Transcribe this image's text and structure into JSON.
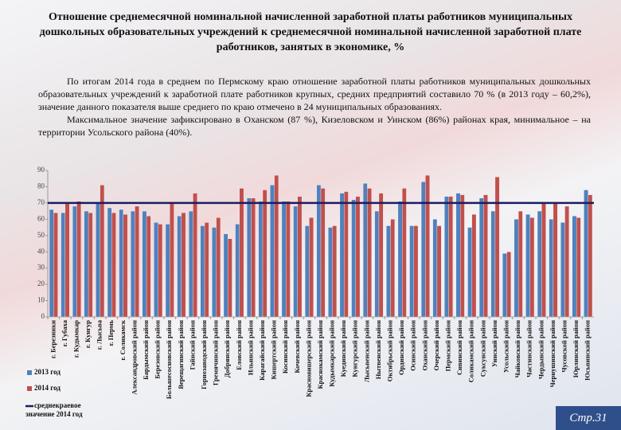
{
  "slide": {
    "title": "Отношение среднемесячной номинальной начисленной заработной платы работников муниципальных дошкольных образовательных учреждений к среднемесячной номинальной начисленной заработной плате работников, занятых в экономике, %",
    "paragraphs": [
      "По итогам 2014 года в среднем по Пермскому краю отношение заработной платы работников муниципальных дошкольных образовательных учреждений к заработной плате работников крупных, средних предприятий составило 70 % (в 2013 году – 60,2%), значение данного показателя выше среднего по краю отмечено в 24 муниципальных образованиях.",
      "Максимальное значение зафиксировано в Оханском (87 %), Кизеловском и Уинском (86%) районах края, минимальное – на территории Усольского района (40%)."
    ],
    "page_number": "Стр.31"
  },
  "chart_data": {
    "type": "bar",
    "categories": [
      "г. Березники",
      "г. Губаха",
      "г. Кудымкар",
      "г. Кунгур",
      "г. Лысьва",
      "г. Пермь",
      "г. Соликамск",
      "Александровский район",
      "Бардымский район",
      "Березовский район",
      "Большесосновский район",
      "Верещагинский район",
      "Гайнский район",
      "Горнозаводский район",
      "Гремячинский район",
      "Добрянский район",
      "Еловский район",
      "Ильинский район",
      "Карагайский район",
      "Кишертский район",
      "Косинский район",
      "Кочевский район",
      "Красновишерский район",
      "Краснокамский район",
      "Кудымкарский район",
      "Куединский район",
      "Кунгурский район",
      "Лысьвенский район",
      "Нытвенский район",
      "Октябрьский район",
      "Ординский район",
      "Осинский район",
      "Оханский район",
      "Очерский район",
      "Пермский район",
      "Сивинский район",
      "Соликамский район",
      "Суксунский район",
      "Уинский район",
      "Усольский район",
      "Чайковский район",
      "Частинский район",
      "Чердынский район",
      "Чернушинский район",
      "Чусовской район",
      "Юрлинский район",
      "Юсьвинский район"
    ],
    "series": [
      {
        "name": "2013 год",
        "color": "#4f81bd",
        "values": [
          66,
          64,
          68,
          65,
          70,
          67,
          66,
          65,
          65,
          58,
          57,
          62,
          65,
          56,
          55,
          51,
          57,
          73,
          71,
          81,
          71,
          68,
          56,
          81,
          55,
          76,
          72,
          82,
          65,
          56,
          71,
          56,
          83,
          60,
          74,
          76,
          55,
          73,
          65,
          39,
          60,
          63,
          65,
          60,
          58,
          62,
          78
        ]
      },
      {
        "name": "2014 год",
        "color": "#c0504d",
        "values": [
          64,
          70,
          71,
          64,
          81,
          64,
          63,
          68,
          62,
          57,
          70,
          64,
          76,
          58,
          61,
          48,
          79,
          73,
          78,
          87,
          71,
          74,
          61,
          79,
          56,
          77,
          74,
          79,
          76,
          60,
          79,
          56,
          87,
          56,
          74,
          75,
          63,
          75,
          86,
          40,
          65,
          61,
          70,
          70,
          68,
          61,
          75
        ]
      }
    ],
    "reference_line": {
      "name": "среднекраевое значение 2014 год",
      "value": 70,
      "color": "#1c1c64"
    },
    "ylim": [
      0,
      90
    ],
    "yticks": [
      0,
      10,
      20,
      30,
      40,
      50,
      60,
      70,
      80,
      90
    ],
    "grid": false
  }
}
